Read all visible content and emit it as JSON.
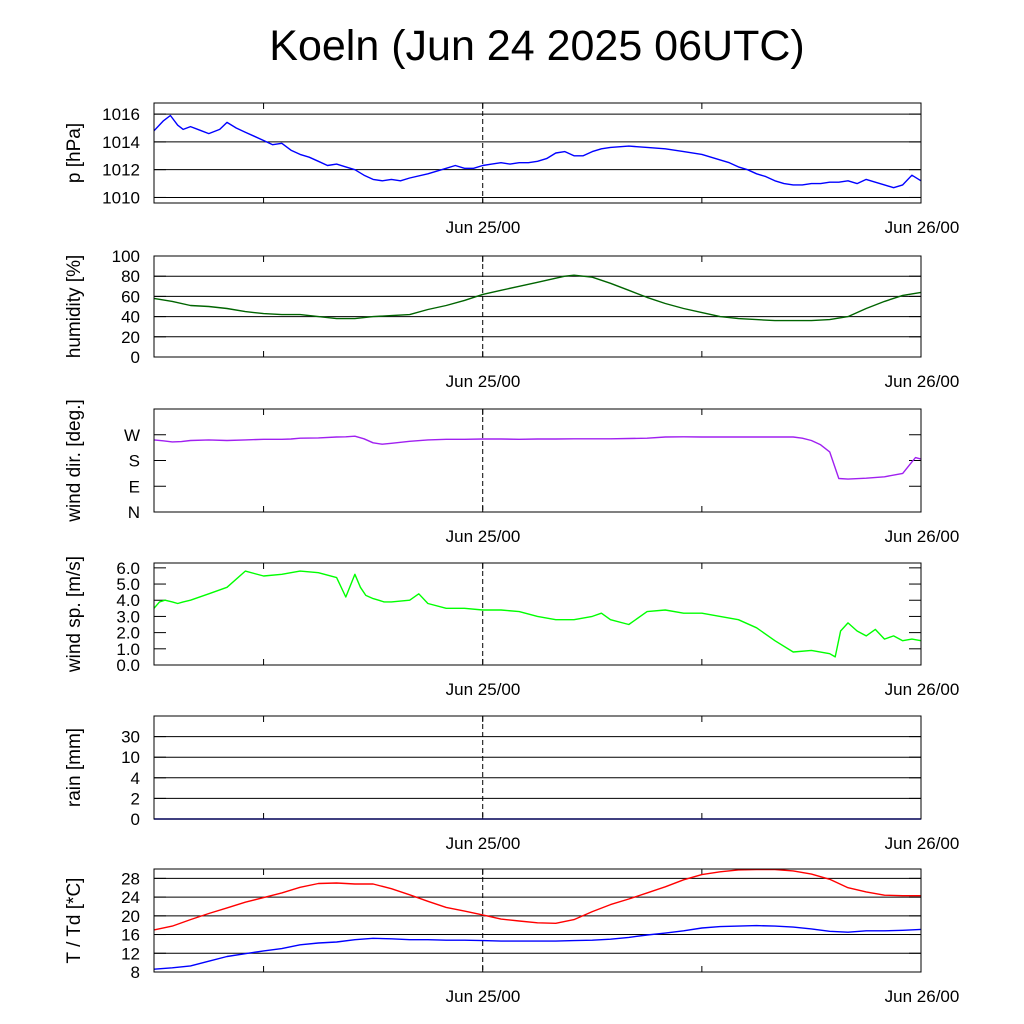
{
  "title": "Koeln (Jun 24 2025 06UTC)",
  "chart_data": [
    {
      "type": "line",
      "ylabel": "p [hPa]",
      "color": "#0000ff",
      "x_ticks": [
        "Jun 25/00",
        "Jun 26/00"
      ],
      "ylim": [
        1009.6,
        1016.8
      ],
      "yticks": [
        1010,
        1012,
        1014,
        1016
      ],
      "ytick_labels": [
        "1010",
        "1012",
        "1014",
        "1016"
      ],
      "grid": "horizontal",
      "series": [
        {
          "x": [
            0,
            0.5,
            0.9,
            1.3,
            1.6,
            2,
            2.6,
            3,
            3.6,
            4,
            4.5,
            5,
            5.5,
            6,
            6.5,
            7,
            7.5,
            8,
            8.5,
            9,
            9.5,
            10,
            10.5,
            11,
            11.5,
            12,
            12.5,
            13,
            13.5,
            14,
            15,
            16,
            16.5,
            17,
            17.5,
            18,
            18.5,
            19,
            19.5,
            20,
            20.5,
            21,
            21.5,
            22,
            22.5,
            23,
            23.5,
            24,
            24.5,
            25,
            26,
            27,
            28,
            29,
            30,
            30.5,
            31,
            31.5,
            32,
            32.5,
            33,
            33.5,
            34,
            34.5,
            35,
            35.5,
            36,
            36.5,
            37,
            37.5,
            38,
            38.5,
            39,
            39.5,
            40,
            40.5,
            41,
            41.5,
            42
          ],
          "values": [
            1014.8,
            1015.5,
            1015.9,
            1015.2,
            1014.9,
            1015.1,
            1014.8,
            1014.6,
            1014.9,
            1015.4,
            1015.0,
            1014.7,
            1014.4,
            1014.1,
            1013.8,
            1013.9,
            1013.4,
            1013.1,
            1012.9,
            1012.6,
            1012.3,
            1012.4,
            1012.2,
            1012.0,
            1011.6,
            1011.3,
            1011.2,
            1011.3,
            1011.2,
            1011.4,
            1011.7,
            1012.1,
            1012.3,
            1012.1,
            1012.1,
            1012.3,
            1012.4,
            1012.5,
            1012.4,
            1012.5,
            1012.5,
            1012.6,
            1012.8,
            1013.2,
            1013.3,
            1013.0,
            1013.0,
            1013.3,
            1013.5,
            1013.6,
            1013.7,
            1013.6,
            1013.5,
            1013.3,
            1013.1,
            1012.9,
            1012.7,
            1012.5,
            1012.2,
            1012.0,
            1011.7,
            1011.5,
            1011.2,
            1011.0,
            1010.9,
            1010.9,
            1011.0,
            1011.0,
            1011.1,
            1011.1,
            1011.2,
            1011.0,
            1011.3,
            1011.1,
            1010.9,
            1010.7,
            1010.9,
            1011.6,
            1011.2
          ]
        }
      ]
    },
    {
      "type": "line",
      "ylabel": "humidity [%]",
      "color": "#006400",
      "x_ticks": [
        "Jun 25/00",
        "Jun 26/00"
      ],
      "ylim": [
        0,
        100
      ],
      "yticks": [
        0,
        20,
        40,
        60,
        80,
        100
      ],
      "ytick_labels": [
        "0",
        "20",
        "40",
        "60",
        "80",
        "100"
      ],
      "grid": "horizontal",
      "series": [
        {
          "x": [
            0,
            1,
            2,
            3,
            4,
            5,
            6,
            7,
            8,
            9,
            10,
            11,
            12,
            13,
            14,
            15,
            16,
            17,
            18,
            19,
            20,
            21,
            22,
            22.5,
            23,
            24,
            25,
            26,
            27,
            28,
            29,
            30,
            31,
            32,
            33,
            34,
            35,
            36,
            37,
            38,
            39,
            40,
            41,
            42
          ],
          "values": [
            58,
            55,
            51,
            50,
            48,
            45,
            43,
            42,
            42,
            40,
            38,
            38,
            40,
            41,
            42,
            47,
            51,
            56,
            62,
            66,
            70,
            74,
            78,
            80,
            81,
            79,
            73,
            66,
            59,
            53,
            48,
            44,
            40,
            38,
            37,
            36,
            36,
            36,
            37,
            40,
            48,
            55,
            61,
            64
          ]
        }
      ]
    },
    {
      "type": "line",
      "ylabel": "wind dir. [deg.]",
      "color": "#a020f0",
      "x_ticks": [
        "Jun 25/00",
        "Jun 26/00"
      ],
      "ylim": [
        0,
        360
      ],
      "yticks": [
        0,
        90,
        180,
        270
      ],
      "ytick_labels": [
        "N",
        "E",
        "S",
        "W"
      ],
      "grid": "none",
      "series": [
        {
          "x": [
            0,
            0.5,
            1,
            1.5,
            2,
            3,
            4,
            5,
            6,
            7,
            7.5,
            8,
            9,
            10,
            10.5,
            11,
            11.5,
            12,
            12.5,
            13,
            14,
            15,
            16,
            17,
            18,
            19,
            20,
            21,
            22,
            23,
            24,
            25,
            26,
            27,
            28,
            29,
            30,
            31,
            32,
            33,
            34,
            35,
            35.5,
            36,
            36.5,
            37,
            37.5,
            38,
            39,
            40,
            41,
            41.5,
            41.7,
            42
          ],
          "values": [
            252,
            249,
            245,
            246,
            250,
            252,
            250,
            252,
            254,
            254,
            255,
            258,
            259,
            262,
            263,
            265,
            256,
            242,
            237,
            240,
            247,
            252,
            254,
            254,
            255,
            255,
            254,
            255,
            255,
            256,
            256,
            256,
            257,
            258,
            262,
            263,
            262,
            262,
            262,
            262,
            262,
            262,
            258,
            250,
            235,
            210,
            117,
            115,
            118,
            123,
            135,
            175,
            190,
            185
          ]
        }
      ]
    },
    {
      "type": "line",
      "ylabel": "wind sp. [m/s]",
      "color": "#00ff00",
      "x_ticks": [
        "Jun 25/00",
        "Jun 26/00"
      ],
      "ylim": [
        0,
        6.3
      ],
      "yticks": [
        0,
        1,
        2,
        3,
        4,
        5,
        6
      ],
      "ytick_labels": [
        "0.0",
        "1.0",
        "2.0",
        "3.0",
        "4.0",
        "5.0",
        "6.0"
      ],
      "grid": "none",
      "series": [
        {
          "x": [
            0,
            0.3,
            0.6,
            1,
            1.3,
            1.6,
            2,
            3,
            4,
            5,
            6,
            7,
            8,
            9,
            10,
            10.5,
            11,
            11.3,
            11.6,
            12,
            12.3,
            12.6,
            13,
            14,
            14.5,
            15,
            16,
            17,
            18,
            19,
            20,
            21,
            22,
            23,
            24,
            24.5,
            25,
            26,
            27,
            28,
            29,
            30,
            31,
            32,
            33,
            34,
            35,
            36,
            37,
            37.3,
            37.6,
            38,
            38.5,
            39,
            39.5,
            40,
            40.5,
            41,
            41.5,
            42
          ],
          "values": [
            3.5,
            3.9,
            4.0,
            3.9,
            3.8,
            3.9,
            4.0,
            4.4,
            4.8,
            5.8,
            5.5,
            5.6,
            5.8,
            5.7,
            5.4,
            4.2,
            5.6,
            4.8,
            4.3,
            4.1,
            4.0,
            3.9,
            3.9,
            4.0,
            4.4,
            3.8,
            3.5,
            3.5,
            3.4,
            3.4,
            3.3,
            3.0,
            2.8,
            2.8,
            3.0,
            3.2,
            2.8,
            2.5,
            3.3,
            3.4,
            3.2,
            3.2,
            3.0,
            2.8,
            2.3,
            1.5,
            0.8,
            0.9,
            0.7,
            0.5,
            2.1,
            2.6,
            2.1,
            1.8,
            2.2,
            1.6,
            1.8,
            1.5,
            1.6,
            1.5
          ]
        }
      ]
    },
    {
      "type": "line",
      "ylabel": "rain [mm]",
      "color": "#0000ff",
      "x_ticks": [
        "Jun 25/00",
        "Jun 26/00"
      ],
      "ylim": [
        0,
        5
      ],
      "yticks": [
        0,
        1,
        2,
        3,
        4
      ],
      "ytick_labels": [
        "0",
        "2",
        "4",
        "10",
        "30"
      ],
      "grid": "horizontal",
      "series": [
        {
          "x": [
            0,
            42
          ],
          "values": [
            0,
            0
          ]
        }
      ]
    },
    {
      "type": "line",
      "ylabel": "T / Td [*C]",
      "x_ticks": [
        "Jun 25/00",
        "Jun 26/00"
      ],
      "ylim": [
        8,
        30
      ],
      "yticks": [
        8,
        12,
        16,
        20,
        24,
        28
      ],
      "ytick_labels": [
        "8",
        "12",
        "16",
        "20",
        "24",
        "28"
      ],
      "grid": "horizontal",
      "series": [
        {
          "color": "#ff0000",
          "x": [
            0,
            1,
            2,
            3,
            4,
            5,
            6,
            7,
            8,
            9,
            10,
            11,
            12,
            13,
            14,
            15,
            16,
            17,
            18,
            19,
            20,
            21,
            22,
            23,
            24,
            25,
            26,
            27,
            28,
            29,
            30,
            31,
            32,
            33,
            34,
            35,
            36,
            37,
            38,
            39,
            40,
            41,
            42
          ],
          "values": [
            17.0,
            17.8,
            19.2,
            20.5,
            21.7,
            22.9,
            23.9,
            24.9,
            26.1,
            26.9,
            27.0,
            26.8,
            26.8,
            25.8,
            24.5,
            23.1,
            21.8,
            21.0,
            20.2,
            19.3,
            18.9,
            18.5,
            18.4,
            19.2,
            20.9,
            22.4,
            23.6,
            24.9,
            26.2,
            27.7,
            28.8,
            29.4,
            29.8,
            29.9,
            29.9,
            29.6,
            28.9,
            27.8,
            26.0,
            25.1,
            24.4,
            24.3,
            24.3
          ]
        },
        {
          "color": "#0000ff",
          "x": [
            0,
            1,
            2,
            3,
            4,
            5,
            6,
            7,
            8,
            9,
            10,
            11,
            12,
            13,
            14,
            15,
            16,
            17,
            18,
            19,
            20,
            21,
            22,
            23,
            24,
            25,
            26,
            27,
            28,
            29,
            30,
            31,
            32,
            33,
            34,
            35,
            36,
            37,
            38,
            39,
            40,
            41,
            42
          ],
          "values": [
            8.6,
            8.9,
            9.3,
            10.3,
            11.3,
            11.9,
            12.5,
            13.0,
            13.8,
            14.2,
            14.4,
            14.9,
            15.2,
            15.1,
            14.9,
            14.9,
            14.8,
            14.8,
            14.7,
            14.6,
            14.6,
            14.6,
            14.6,
            14.7,
            14.8,
            15.0,
            15.4,
            15.9,
            16.3,
            16.8,
            17.4,
            17.7,
            17.8,
            17.9,
            17.8,
            17.6,
            17.2,
            16.7,
            16.5,
            16.8,
            16.8,
            16.9,
            17.1
          ]
        }
      ]
    }
  ]
}
